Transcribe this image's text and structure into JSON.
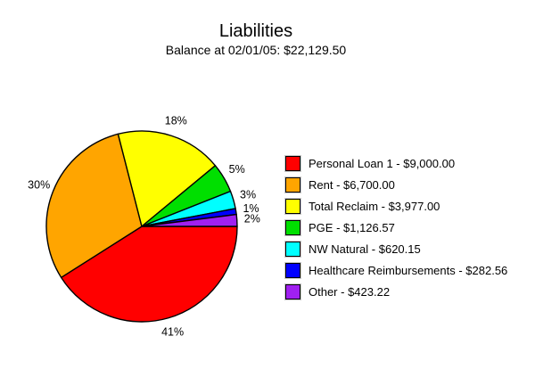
{
  "header": {
    "title": "Liabilities",
    "subtitle": "Balance at 02/01/05: $22,129.50"
  },
  "chart_data": {
    "type": "pie",
    "title": "Liabilities",
    "subtitle": "Balance at 02/01/05: $22,129.50",
    "total_label": "$22,129.50",
    "legend_position": "right",
    "start_angle_deg": 0,
    "direction": "clockwise",
    "slices": [
      {
        "name": "Personal Loan 1",
        "value": 9000.0,
        "amount": "$9,000.00",
        "percent": 41,
        "percent_label": "41%",
        "color": "#ff0000",
        "legend_label": "Personal Loan 1 - $9,000.00"
      },
      {
        "name": "Rent",
        "value": 6700.0,
        "amount": "$6,700.00",
        "percent": 30,
        "percent_label": "30%",
        "color": "#ffa500",
        "legend_label": "Rent - $6,700.00"
      },
      {
        "name": "Total Reclaim",
        "value": 3977.0,
        "amount": "$3,977.00",
        "percent": 18,
        "percent_label": "18%",
        "color": "#ffff00",
        "legend_label": "Total Reclaim - $3,977.00"
      },
      {
        "name": "PGE",
        "value": 1126.57,
        "amount": "$1,126.57",
        "percent": 5,
        "percent_label": "5%",
        "color": "#00df00",
        "legend_label": "PGE - $1,126.57"
      },
      {
        "name": "NW Natural",
        "value": 620.15,
        "amount": "$620.15",
        "percent": 3,
        "percent_label": "3%",
        "color": "#00ffff",
        "legend_label": "NW Natural - $620.15"
      },
      {
        "name": "Healthcare Reimbursements",
        "value": 282.56,
        "amount": "$282.56",
        "percent": 1,
        "percent_label": "1%",
        "color": "#0000ff",
        "legend_label": "Healthcare Reimbursements - $282.56"
      },
      {
        "name": "Other",
        "value": 423.22,
        "amount": "$423.22",
        "percent": 2,
        "percent_label": "2%",
        "color": "#a020f0",
        "legend_label": "Other - $423.22"
      }
    ]
  }
}
